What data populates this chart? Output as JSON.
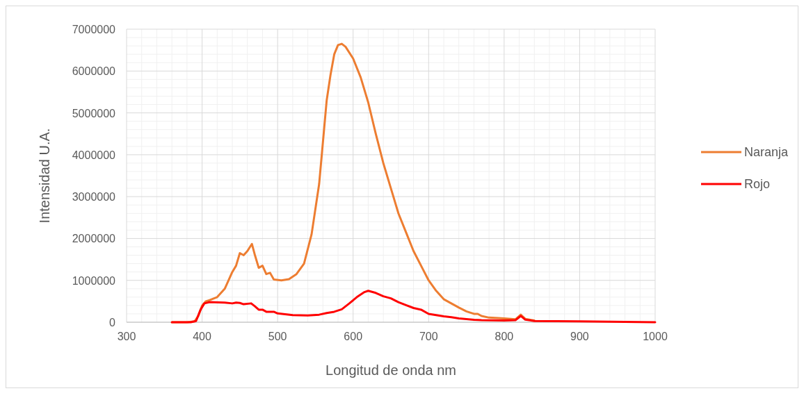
{
  "chart_data": {
    "type": "line",
    "xlabel": "Longitud de onda nm",
    "ylabel": "Intensidad U.A.",
    "xlim": [
      300,
      1000
    ],
    "xticks": [
      300,
      400,
      500,
      600,
      700,
      800,
      900,
      1000
    ],
    "ylim": [
      0,
      7000000
    ],
    "yticks": [
      0,
      1000000,
      2000000,
      3000000,
      4000000,
      5000000,
      6000000,
      7000000
    ],
    "grid": true,
    "legend": "right",
    "marker": "none",
    "line_style": "solid",
    "series": [
      {
        "name": "Naranja",
        "color": "#ed7d31",
        "x": [
          360,
          380,
          390,
          395,
          400,
          405,
          410,
          420,
          430,
          440,
          445,
          450,
          455,
          460,
          466,
          470,
          475,
          480,
          485,
          490,
          495,
          505,
          515,
          525,
          535,
          545,
          555,
          560,
          565,
          570,
          575,
          580,
          585,
          590,
          600,
          610,
          620,
          630,
          640,
          650,
          660,
          670,
          680,
          690,
          700,
          710,
          720,
          730,
          740,
          750,
          760,
          765,
          770,
          780,
          800,
          815,
          822,
          828,
          840
        ],
        "values": [
          0,
          0,
          20000,
          150000,
          400000,
          500000,
          530000,
          600000,
          800000,
          1200000,
          1350000,
          1650000,
          1600000,
          1700000,
          1870000,
          1600000,
          1300000,
          1350000,
          1150000,
          1180000,
          1020000,
          1000000,
          1030000,
          1150000,
          1400000,
          2100000,
          3300000,
          4300000,
          5300000,
          5900000,
          6400000,
          6620000,
          6650000,
          6580000,
          6300000,
          5850000,
          5250000,
          4500000,
          3800000,
          3200000,
          2600000,
          2150000,
          1700000,
          1350000,
          1000000,
          750000,
          550000,
          450000,
          350000,
          260000,
          200000,
          200000,
          150000,
          110000,
          90000,
          70000,
          180000,
          80000,
          40000
        ]
      },
      {
        "name": "Rojo",
        "color": "#ff0000",
        "x": [
          360,
          385,
          392,
          398,
          403,
          410,
          430,
          440,
          445,
          450,
          455,
          465,
          470,
          475,
          480,
          485,
          495,
          500,
          520,
          540,
          555,
          565,
          575,
          585,
          595,
          605,
          615,
          620,
          630,
          640,
          650,
          660,
          670,
          680,
          690,
          700,
          710,
          720,
          730,
          740,
          760,
          770,
          800,
          815,
          822,
          828,
          840,
          900,
          1000
        ],
        "values": [
          0,
          0,
          30000,
          300000,
          450000,
          480000,
          470000,
          450000,
          470000,
          460000,
          430000,
          450000,
          380000,
          300000,
          300000,
          250000,
          250000,
          210000,
          170000,
          160000,
          180000,
          220000,
          250000,
          310000,
          450000,
          600000,
          720000,
          750000,
          700000,
          620000,
          570000,
          480000,
          410000,
          340000,
          300000,
          200000,
          170000,
          140000,
          120000,
          90000,
          60000,
          50000,
          40000,
          50000,
          150000,
          60000,
          30000,
          20000,
          0
        ]
      }
    ]
  }
}
